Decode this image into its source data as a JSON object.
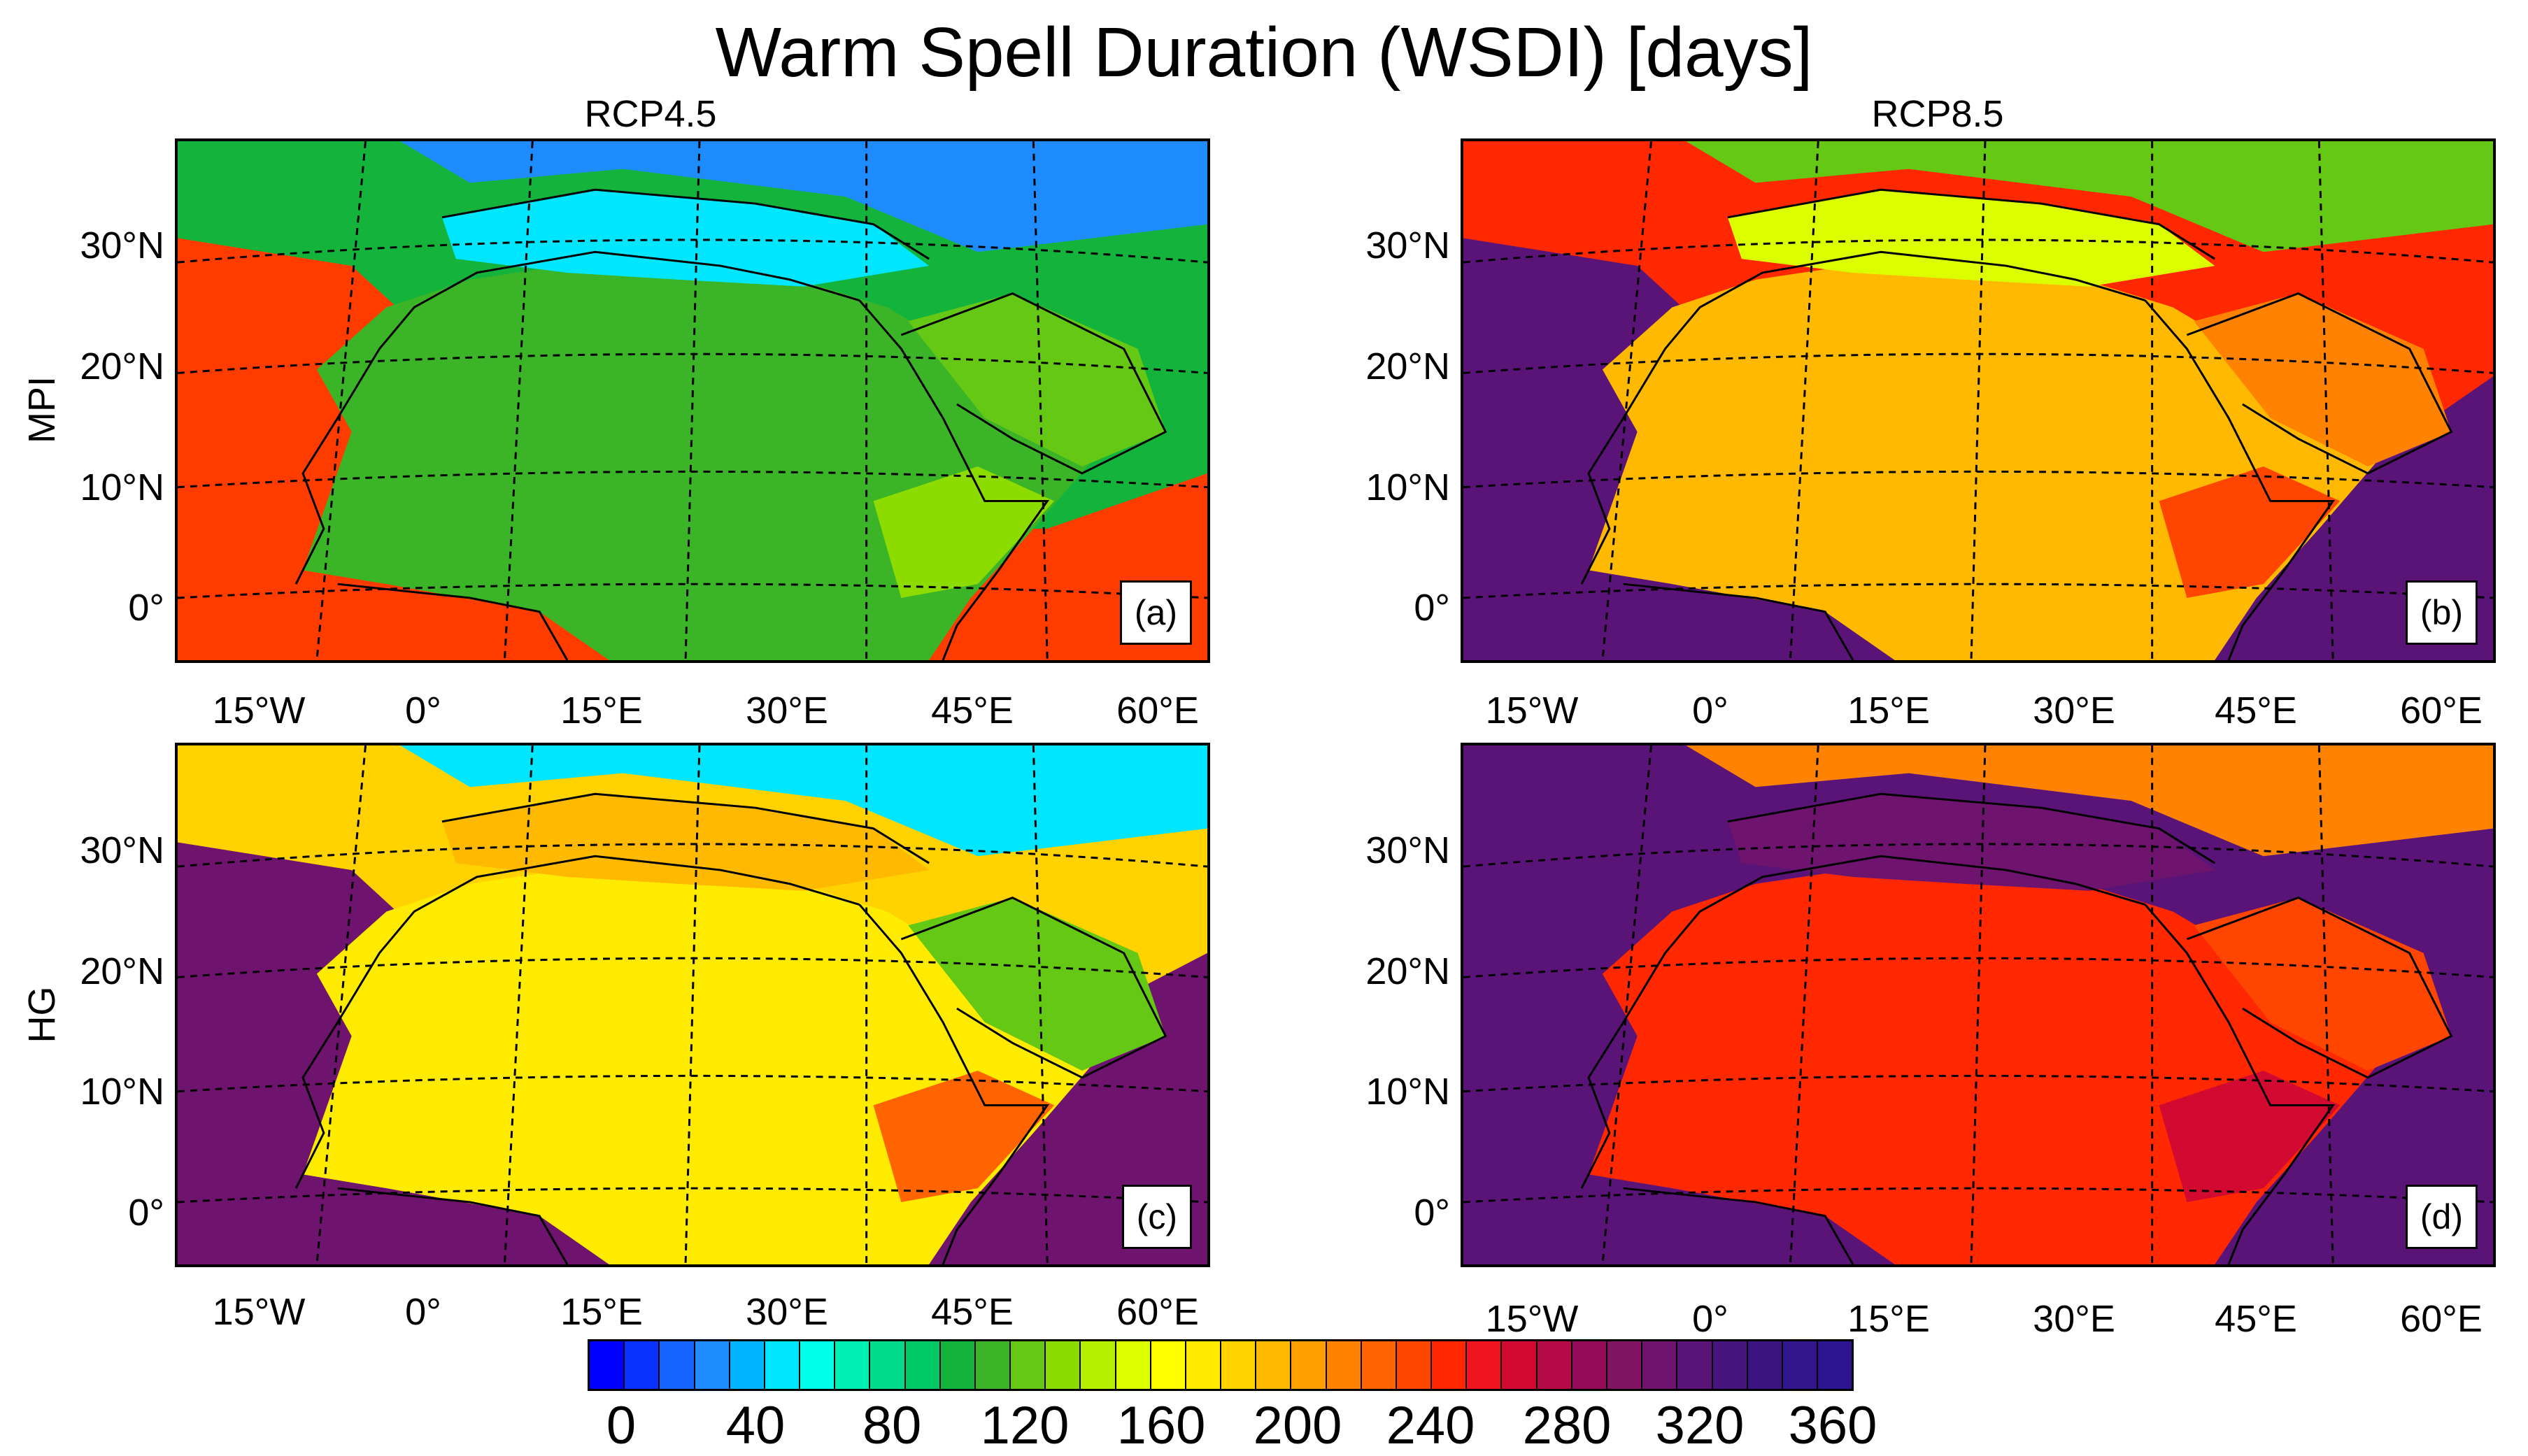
{
  "title": "Warm Spell Duration (WSDI) [days]",
  "columns": [
    "RCP4.5",
    "RCP8.5"
  ],
  "rows": [
    "MPI",
    "HG"
  ],
  "panels": [
    {
      "tag": "(a)",
      "scenario": "RCP4.5",
      "model": "MPI"
    },
    {
      "tag": "(b)",
      "scenario": "RCP8.5",
      "model": "MPI"
    },
    {
      "tag": "(c)",
      "scenario": "RCP4.5",
      "model": "HG"
    },
    {
      "tag": "(d)",
      "scenario": "RCP8.5",
      "model": "HG"
    }
  ],
  "lat_labels": [
    "30°N",
    "20°N",
    "10°N",
    "0°"
  ],
  "lon_labels": [
    "15°W",
    "0°",
    "15°E",
    "30°E",
    "45°E",
    "60°E"
  ],
  "colorbar": {
    "ticks": [
      "0",
      "40",
      "80",
      "120",
      "160",
      "200",
      "240",
      "280",
      "320",
      "360"
    ],
    "colors": [
      "#0000ff",
      "#0a32ff",
      "#1464ff",
      "#1e8cff",
      "#00b4ff",
      "#00e6ff",
      "#00ffe6",
      "#00f0b4",
      "#00dc8c",
      "#00c864",
      "#14b43c",
      "#3cb428",
      "#64c814",
      "#8cdc00",
      "#b4f000",
      "#dcff00",
      "#ffff00",
      "#ffeb00",
      "#ffd200",
      "#ffb900",
      "#ffa000",
      "#ff8200",
      "#ff6400",
      "#ff4600",
      "#ff2800",
      "#f0141e",
      "#d20a32",
      "#b40a46",
      "#960a5a",
      "#821464",
      "#6e146e",
      "#5a1478",
      "#46147d",
      "#3c1482",
      "#32148c",
      "#2d1491"
    ]
  },
  "panel_colors": {
    "a": {
      "sea_s": "#ff3c00",
      "sea_n": "#14b43c",
      "land": "#3cb428",
      "med": "#00e6ff",
      "north": "#1e8cff",
      "arabia": "#64c814",
      "horn": "#8cdc00"
    },
    "b": {
      "sea_s": "#5a1478",
      "sea_n": "#ff2800",
      "land": "#ffb900",
      "med": "#dcff00",
      "north": "#64c814",
      "arabia": "#ff8200",
      "horn": "#ff4600"
    },
    "c": {
      "sea_s": "#6e146e",
      "sea_n": "#ffd200",
      "land": "#ffeb00",
      "med": "#ffb900",
      "north": "#00e6ff",
      "arabia": "#64c814",
      "horn": "#ff6400"
    },
    "d": {
      "sea_s": "#5a1478",
      "sea_n": "#5a1478",
      "land": "#ff2800",
      "med": "#6e146e",
      "north": "#ff8200",
      "arabia": "#ff4600",
      "horn": "#d20a32"
    }
  }
}
